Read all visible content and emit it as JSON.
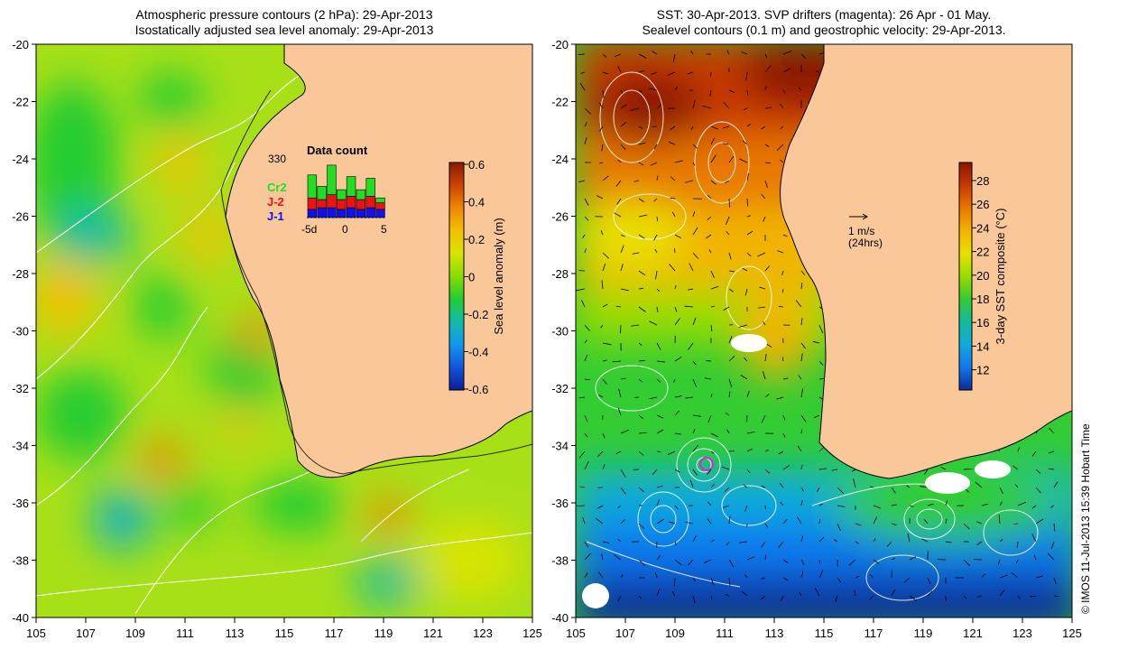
{
  "left_panel": {
    "title_line1": "Atmospheric pressure contours (2 hPa): 29-Apr-2013",
    "title_line2": "Isostatically adjusted sea level anomaly: 29-Apr-2013",
    "colorbar": {
      "label": "Sea level anomaly (m)",
      "ticks": [
        "0.6",
        "0.4",
        "0.2",
        "0",
        "-0.2",
        "-0.4",
        "-0.6"
      ],
      "colors": [
        "#8b1a00",
        "#cc4400",
        "#ee8800",
        "#f4c000",
        "#d8e400",
        "#88dd00",
        "#22cc33",
        "#11bbaa",
        "#1199ee",
        "#1155dd",
        "#0a1e99"
      ]
    },
    "data_count": {
      "title": "Data count",
      "max_label": "330",
      "x_ticks": [
        "-5d",
        "0",
        "5"
      ],
      "series": [
        {
          "name": "Cr2",
          "color": "#22dd22"
        },
        {
          "name": "J-2",
          "color": "#ee1111"
        },
        {
          "name": "J-1",
          "color": "#1111ee"
        }
      ],
      "bars": [
        [
          0.25,
          0.35,
          0.7
        ],
        [
          0.3,
          0.25,
          0.4
        ],
        [
          0.3,
          0.4,
          0.9
        ],
        [
          0.25,
          0.3,
          0.3
        ],
        [
          0.3,
          0.35,
          0.6
        ],
        [
          0.25,
          0.3,
          0.3
        ],
        [
          0.3,
          0.35,
          0.55
        ],
        [
          0.25,
          0.2,
          0.15
        ]
      ]
    }
  },
  "right_panel": {
    "title_line1": "SST: 30-Apr-2013. SVP drifters (magenta): 26 Apr - 01 May.",
    "title_line2": "Sealevel contours (0.1 m) and geostrophic velocity: 29-Apr-2013.",
    "scale_arrow_label1": "1 m/s",
    "scale_arrow_label2": "(24hrs)",
    "colorbar": {
      "label": "3-day SST composite (°C)",
      "ticks": [
        "28",
        "26",
        "24",
        "22",
        "20",
        "18",
        "16",
        "14",
        "12"
      ],
      "colors": [
        "#8b1500",
        "#c83a00",
        "#e87800",
        "#f2b400",
        "#e8e000",
        "#99dd00",
        "#33cc33",
        "#11bb99",
        "#11aadd",
        "#1177ee",
        "#0a2c99"
      ]
    }
  },
  "axes": {
    "x_ticks": [
      "105",
      "107",
      "109",
      "111",
      "113",
      "115",
      "117",
      "119",
      "121",
      "123",
      "125"
    ],
    "y_ticks": [
      "-20",
      "-22",
      "-24",
      "-26",
      "-28",
      "-30",
      "-32",
      "-34",
      "-36",
      "-38",
      "-40"
    ]
  },
  "colors": {
    "land": "#fac898",
    "contour": "#ffffff",
    "coast": "#000000"
  },
  "copyright": "© IMOS 11-Jul-2013 15:39 Hobart Time"
}
